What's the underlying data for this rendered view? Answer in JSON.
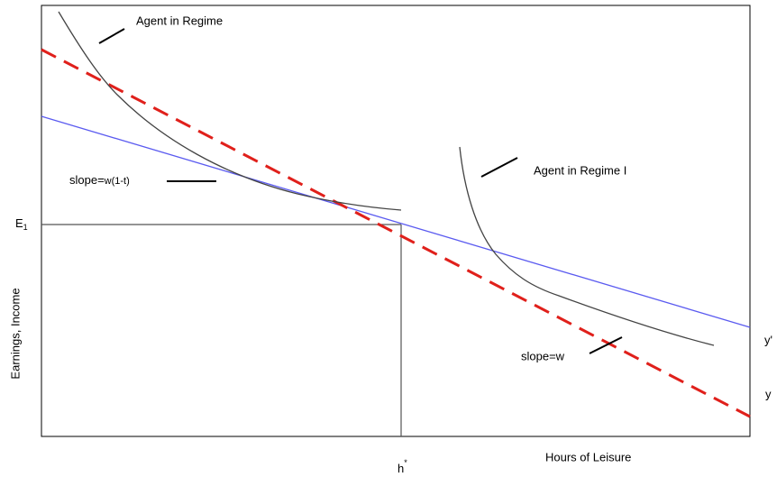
{
  "labels": {
    "agent_regime_top": "Agent in Regime",
    "agent_regime_right": "Agent in Regime I",
    "slope_after_tax": {
      "prefix": "slope=",
      "rate": "w(1-t)"
    },
    "slope_gross": "slope=w",
    "e1": {
      "base": "E",
      "sub": "1"
    },
    "h_star": {
      "base": "h",
      "sup": "*"
    },
    "y_prime": "y'",
    "y": "y",
    "x_axis": "Hours of Leisure",
    "y_axis": "Earnings, Income"
  }
}
